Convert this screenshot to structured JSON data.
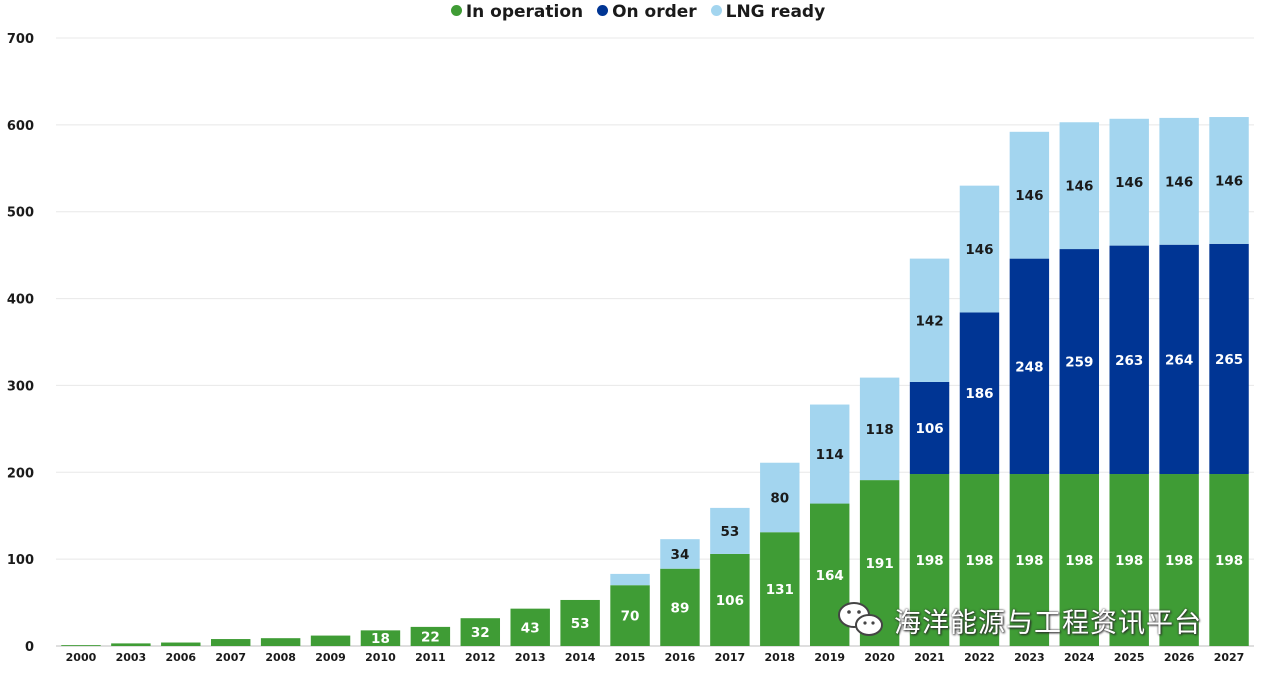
{
  "chart_data": {
    "type": "bar",
    "stacked": true,
    "categories": [
      "2000",
      "2003",
      "2006",
      "2007",
      "2008",
      "2009",
      "2010",
      "2011",
      "2012",
      "2013",
      "2014",
      "2015",
      "2016",
      "2017",
      "2018",
      "2019",
      "2020",
      "2021",
      "2022",
      "2023",
      "2024",
      "2025",
      "2026",
      "2027"
    ],
    "series": [
      {
        "name": "In operation",
        "color": "#3f9c35",
        "values": [
          1,
          3,
          4,
          8,
          9,
          12,
          18,
          22,
          32,
          43,
          53,
          70,
          89,
          106,
          131,
          164,
          191,
          198,
          198,
          198,
          198,
          198,
          198,
          198
        ]
      },
      {
        "name": "On order",
        "color": "#003594",
        "values": [
          0,
          0,
          0,
          0,
          0,
          0,
          0,
          0,
          0,
          0,
          0,
          0,
          0,
          0,
          0,
          0,
          0,
          106,
          186,
          248,
          259,
          263,
          264,
          265
        ]
      },
      {
        "name": "LNG ready",
        "color": "#a3d5ef",
        "values": [
          0,
          0,
          0,
          0,
          0,
          0,
          0,
          0,
          0,
          0,
          0,
          13,
          34,
          53,
          80,
          114,
          118,
          142,
          146,
          146,
          146,
          146,
          146,
          146
        ]
      }
    ],
    "data_labels": [
      [
        null,
        null,
        null,
        null,
        null,
        null,
        "18",
        "22",
        "32",
        "43",
        "53",
        "70",
        "89",
        "106",
        "131",
        "164",
        "191",
        "198",
        "198",
        "198",
        "198",
        "198",
        "198",
        "198"
      ],
      [
        null,
        null,
        null,
        null,
        null,
        null,
        null,
        null,
        null,
        null,
        null,
        null,
        null,
        null,
        null,
        null,
        null,
        "106",
        "186",
        "248",
        "259",
        "263",
        "264",
        "265"
      ],
      [
        null,
        null,
        null,
        null,
        null,
        null,
        null,
        null,
        null,
        null,
        null,
        null,
        "34",
        "53",
        "80",
        "114",
        "118",
        "142",
        "146",
        "146",
        "146",
        "146",
        "146",
        "146"
      ]
    ],
    "label_colors": [
      "#ffffff",
      "#ffffff",
      "#1a1a1a"
    ],
    "ylim": [
      0,
      700
    ],
    "yticks": [
      0,
      100,
      200,
      300,
      400,
      500,
      600,
      700
    ],
    "grid": true,
    "legend_position": "top-center",
    "title": "",
    "xlabel": "",
    "ylabel": ""
  },
  "watermark": {
    "text": "海洋能源与工程资讯平台",
    "icon": "wechat-icon"
  }
}
